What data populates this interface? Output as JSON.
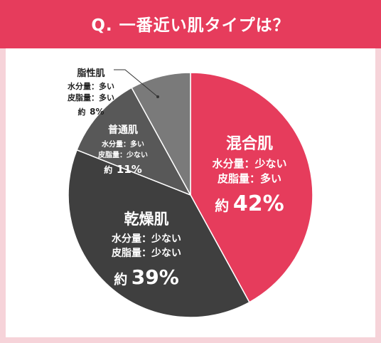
{
  "header": {
    "title": "Q. 一番近い肌タイプは？",
    "color": "#e63c5c"
  },
  "background_color": "#f6d3d9",
  "chart_data": {
    "type": "pie",
    "title": "Q. 一番近い肌タイプは？",
    "slices": [
      {
        "name": "混合肌",
        "line1": "水分量：少ない",
        "line2": "皮脂量：多い",
        "prefix": "約",
        "value": 42,
        "value_label": "42%",
        "color": "#e63c5c"
      },
      {
        "name": "乾燥肌",
        "line1": "水分量：少ない",
        "line2": "皮脂量：少ない",
        "prefix": "約",
        "value": 39,
        "value_label": "39%",
        "color": "#3f3f3f"
      },
      {
        "name": "普通肌",
        "line1": "水分量：多い",
        "line2": "皮脂量：少ない",
        "prefix": "約",
        "value": 11,
        "value_label": "11%",
        "color": "#585858"
      },
      {
        "name": "脂性肌",
        "line1": "水分量：多い",
        "line2": "皮脂量：多い",
        "prefix": "約",
        "value": 8,
        "value_label": "8%",
        "color": "#7a7a7a"
      }
    ],
    "start_angle_deg": 0,
    "direction": "clockwise"
  }
}
